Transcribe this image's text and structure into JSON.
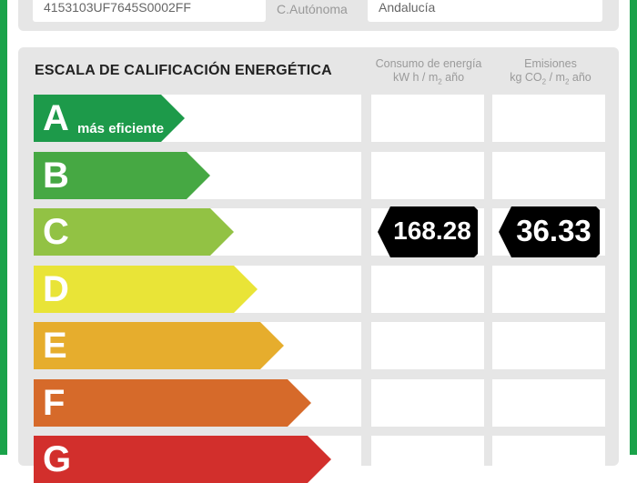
{
  "property": {
    "cadastral_ref": "4153103UF7645S0002FF",
    "region_label": "C.Autónoma",
    "region_value": "Andalucía"
  },
  "scale": {
    "title": "ESCALA DE CALIFICACIÓN ENERGÉTICA",
    "energy_header_line1": "Consumo de energía",
    "energy_header_line2": "kW h / m",
    "energy_header_sub": "2",
    "energy_header_tail": " año",
    "emissions_header_line1": "Emisiones",
    "emissions_header_line2_a": "kg CO",
    "emissions_header_sub1": "2",
    "emissions_header_line2_b": " / m",
    "emissions_header_sub2": "2",
    "emissions_header_tail": " año",
    "ratings": [
      {
        "letter": "A",
        "label": "más eficiente",
        "color": "#1d9a4a"
      },
      {
        "letter": "B",
        "label": "",
        "color": "#46a843"
      },
      {
        "letter": "C",
        "label": "",
        "color": "#92c244"
      },
      {
        "letter": "D",
        "label": "",
        "color": "#e9e437"
      },
      {
        "letter": "E",
        "label": "",
        "color": "#e6ad2d"
      },
      {
        "letter": "F",
        "label": "",
        "color": "#d66a2a"
      },
      {
        "letter": "G",
        "label": "",
        "color": "#d22f2c"
      }
    ],
    "current": {
      "rating": "C",
      "energy_value": "168.28",
      "emissions_value": "36.33"
    }
  }
}
